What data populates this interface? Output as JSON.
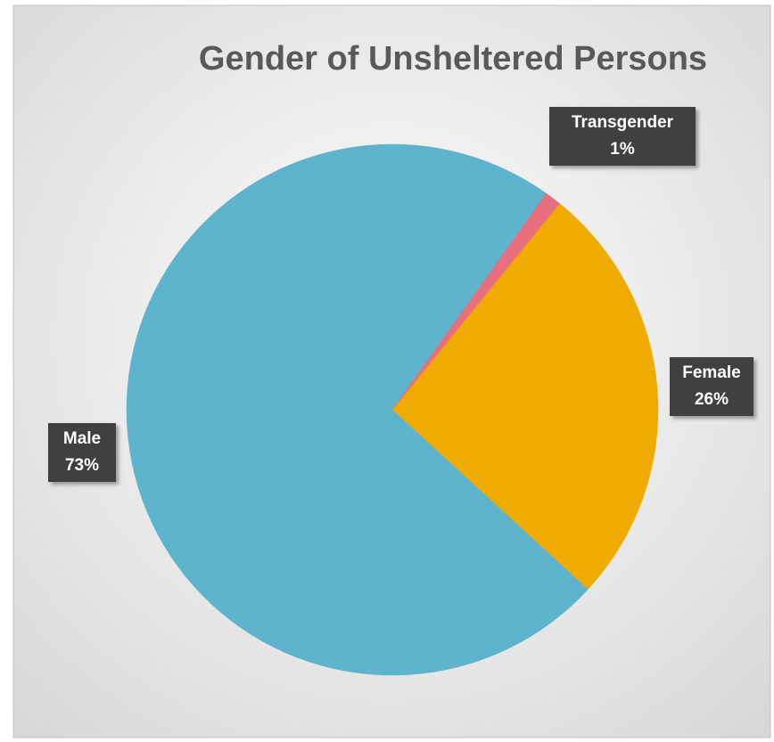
{
  "chart_data": {
    "type": "pie",
    "title": "Gender of Unsheltered Persons",
    "categories": [
      "Female",
      "Male",
      "Transgender"
    ],
    "values": [
      26,
      73,
      1
    ],
    "value_labels": [
      "26%",
      "73%",
      "1%"
    ],
    "colors": [
      "#f0ab00",
      "#5eb4cd",
      "#e8707e"
    ]
  }
}
